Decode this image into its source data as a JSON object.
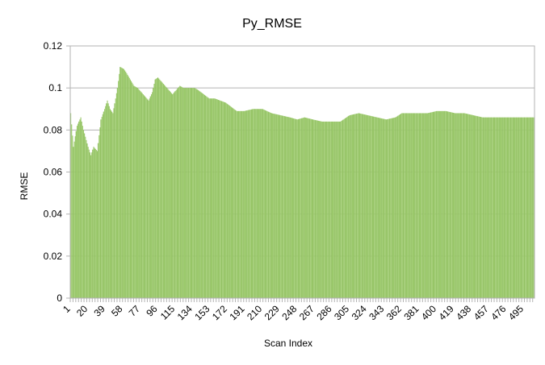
{
  "chart_data": {
    "type": "bar",
    "title": "Py_RMSE",
    "xlabel": "Scan Index",
    "ylabel": "RMSE",
    "ylim": [
      0,
      0.12
    ],
    "yticks": [
      "0",
      "0.02",
      "0.04",
      "0.06",
      "0.08",
      "0.1",
      "0.12"
    ],
    "xrange": [
      1,
      506
    ],
    "xticks": [
      1,
      20,
      39,
      58,
      77,
      96,
      115,
      134,
      153,
      172,
      191,
      210,
      229,
      248,
      267,
      286,
      305,
      324,
      343,
      362,
      381,
      400,
      419,
      438,
      457,
      476,
      495
    ],
    "grid": "horizontal",
    "legend": "none",
    "bar_color": "#9bc96b",
    "bar_edge_color": "#7aa84e",
    "series": [
      {
        "x": [
          1,
          4,
          8,
          12,
          15,
          20,
          23,
          26,
          30,
          34,
          38,
          41,
          44,
          47,
          50,
          52,
          55,
          59,
          62,
          66,
          70,
          74,
          78,
          82,
          86,
          90,
          93,
          96,
          100,
          104,
          108,
          112,
          116,
          120,
          124,
          128,
          132,
          136,
          140,
          146,
          152,
          158,
          164,
          170,
          176,
          182,
          190,
          200,
          210,
          220,
          230,
          240,
          248,
          256,
          265,
          275,
          285,
          295,
          305,
          315,
          325,
          335,
          345,
          355,
          362,
          370,
          380,
          390,
          400,
          410,
          420,
          430,
          440,
          450,
          460,
          470,
          480,
          490,
          500,
          506
        ],
        "values": [
          0.088,
          0.072,
          0.082,
          0.086,
          0.08,
          0.072,
          0.068,
          0.072,
          0.07,
          0.085,
          0.09,
          0.094,
          0.09,
          0.088,
          0.095,
          0.1,
          0.11,
          0.109,
          0.107,
          0.104,
          0.101,
          0.1,
          0.098,
          0.096,
          0.094,
          0.098,
          0.104,
          0.105,
          0.103,
          0.101,
          0.099,
          0.097,
          0.099,
          0.101,
          0.1,
          0.1,
          0.1,
          0.1,
          0.099,
          0.097,
          0.095,
          0.095,
          0.094,
          0.093,
          0.091,
          0.089,
          0.089,
          0.09,
          0.09,
          0.088,
          0.087,
          0.086,
          0.085,
          0.086,
          0.085,
          0.084,
          0.084,
          0.084,
          0.087,
          0.088,
          0.087,
          0.086,
          0.085,
          0.086,
          0.088,
          0.088,
          0.088,
          0.088,
          0.089,
          0.089,
          0.088,
          0.088,
          0.087,
          0.086,
          0.086,
          0.086,
          0.086,
          0.086,
          0.086,
          0.086
        ]
      }
    ]
  }
}
